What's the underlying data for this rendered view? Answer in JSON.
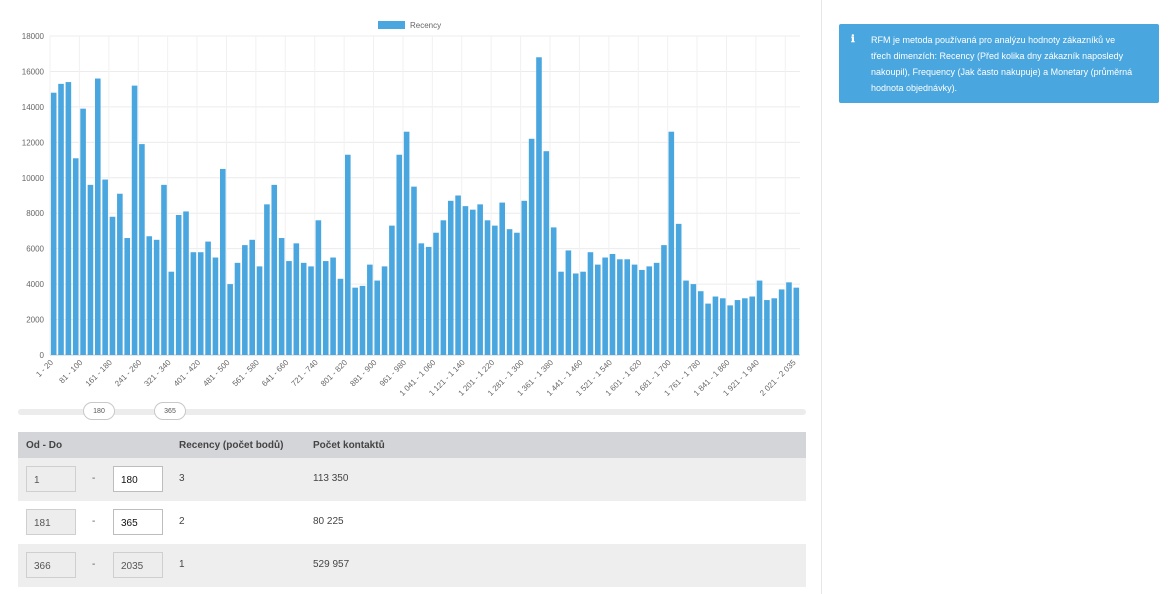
{
  "chart_data": {
    "type": "bar",
    "legend": [
      "Recency"
    ],
    "legend_position": "top-center",
    "grid": true,
    "color": "#4aa6de",
    "ylim": [
      0,
      18000
    ],
    "yticks": [
      0,
      2000,
      4000,
      6000,
      8000,
      10000,
      12000,
      14000,
      16000,
      18000
    ],
    "series": [
      {
        "name": "Recency",
        "values": [
          14800,
          15300,
          15400,
          11100,
          13900,
          9600,
          15600,
          9900,
          7800,
          9100,
          6600,
          15200,
          11900,
          6700,
          6500,
          9600,
          4700,
          7900,
          8100,
          5800,
          5800,
          6400,
          5500,
          10500,
          4000,
          5200,
          6200,
          6500,
          5000,
          8500,
          9600,
          6600,
          5300,
          6300,
          5200,
          5000,
          7600,
          5300,
          5500,
          4300,
          11300,
          3800,
          3900,
          5100,
          4200,
          5000,
          7300,
          11300,
          12600,
          9500,
          6300,
          6100,
          6900,
          7600,
          8700,
          9000,
          8400,
          8200,
          8500,
          7600,
          7300,
          8600,
          7100,
          6900,
          8700,
          12200,
          16800,
          11500,
          7200,
          4700,
          5900,
          4600,
          4700,
          5800,
          5100,
          5500,
          5700,
          5400,
          5400,
          5100,
          4800,
          5000,
          5200,
          6200,
          12600,
          7400,
          4200,
          4000,
          3600,
          2900,
          3300,
          3200,
          2800,
          3100,
          3200,
          3300,
          4200,
          3100,
          3200,
          3700,
          4100,
          3800
        ]
      }
    ],
    "categories_shown": [
      "1 - 20",
      "81 - 100",
      "161 - 180",
      "241 - 260",
      "321 - 340",
      "401 - 420",
      "481 - 500",
      "561 - 580",
      "641 - 660",
      "721 - 740",
      "801 - 820",
      "881 - 900",
      "961 - 980",
      "1 041 - 1 060",
      "1 121 - 1 140",
      "1 201 - 1 220",
      "1 281 - 1 300",
      "1 361 - 1 380",
      "1 441 - 1 460",
      "1 521 - 1 540",
      "1 601 - 1 620",
      "1 681 - 1 700",
      "1 761 - 1 780",
      "1 841 - 1 860",
      "1 921 - 1 940",
      "2 021 - 2 035"
    ]
  },
  "slider": {
    "handle_low": "180",
    "handle_high": "365"
  },
  "table": {
    "headers": {
      "range": "Od - Do",
      "recency": "Recency (počet bodů)",
      "contacts": "Počet kontaktů"
    },
    "dash": "-",
    "rows": [
      {
        "from": "1",
        "to": "180",
        "points": "3",
        "contacts": "113 350"
      },
      {
        "from": "181",
        "to": "365",
        "points": "2",
        "contacts": "80 225"
      },
      {
        "from": "366",
        "to": "2035",
        "points": "1",
        "contacts": "529 957"
      }
    ]
  },
  "info": {
    "icon": "info-icon",
    "text": "RFM je metoda používaná pro analýzu hodnoty zákazníků ve třech dimenzích: Recency (Před kolika dny zákazník naposledy nakoupil), Frequency (Jak často nakupuje) a Monetary (průměrná hodnota objednávky)."
  }
}
